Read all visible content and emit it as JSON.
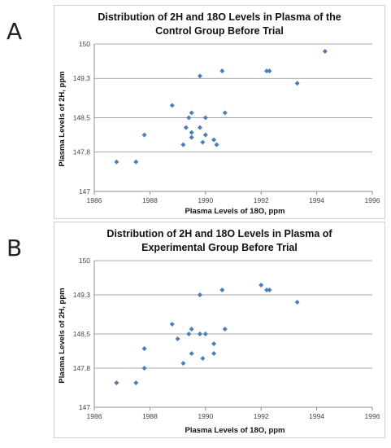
{
  "panels": [
    {
      "letter": "A"
    },
    {
      "letter": "B"
    }
  ],
  "chart_data": [
    {
      "type": "scatter",
      "title_lines": [
        "Distribution of 2H and 18O Levels in Plasma of the",
        "Control Group Before Trial"
      ],
      "xlabel": "Plasma Levels of 18O, ppm",
      "ylabel": "Plasma Levels of 2H, ppm",
      "xlim": [
        1986,
        1996
      ],
      "ylim": [
        147,
        150
      ],
      "x_ticks": [
        1986,
        1988,
        1990,
        1992,
        1994,
        1996
      ],
      "y_ticks": [
        147,
        147.8,
        148.5,
        149.3,
        150
      ],
      "y_tick_labels": [
        "147",
        "147,8",
        "148,5",
        "149,3",
        "150"
      ],
      "grid": "horizontal",
      "color": "#4a7ebb",
      "points": [
        {
          "x": 1986.8,
          "y": 147.6
        },
        {
          "x": 1987.5,
          "y": 147.6
        },
        {
          "x": 1987.8,
          "y": 148.15
        },
        {
          "x": 1988.8,
          "y": 148.75
        },
        {
          "x": 1989.2,
          "y": 147.95
        },
        {
          "x": 1989.3,
          "y": 148.3
        },
        {
          "x": 1989.4,
          "y": 148.5
        },
        {
          "x": 1989.5,
          "y": 148.2
        },
        {
          "x": 1989.5,
          "y": 148.1
        },
        {
          "x": 1989.5,
          "y": 148.6
        },
        {
          "x": 1989.8,
          "y": 148.3
        },
        {
          "x": 1989.8,
          "y": 149.35
        },
        {
          "x": 1989.9,
          "y": 148.0
        },
        {
          "x": 1990.0,
          "y": 148.5
        },
        {
          "x": 1990.0,
          "y": 148.15
        },
        {
          "x": 1990.3,
          "y": 148.05
        },
        {
          "x": 1990.4,
          "y": 147.95
        },
        {
          "x": 1990.6,
          "y": 149.45
        },
        {
          "x": 1990.7,
          "y": 148.6
        },
        {
          "x": 1992.2,
          "y": 149.45
        },
        {
          "x": 1992.3,
          "y": 149.45
        },
        {
          "x": 1993.3,
          "y": 149.2
        },
        {
          "x": 1994.3,
          "y": 149.85
        }
      ]
    },
    {
      "type": "scatter",
      "title_lines": [
        "Distribution of 2H and 18O Levels in Plasma of",
        "Experimental Group Before Trial"
      ],
      "xlabel": "Plasma Levels of 18O, ppm",
      "ylabel": "Plasma Levels of 2H, ppm",
      "xlim": [
        1986,
        1996
      ],
      "ylim": [
        147,
        150
      ],
      "x_ticks": [
        1986,
        1988,
        1990,
        1992,
        1994,
        1996
      ],
      "y_ticks": [
        147,
        147.8,
        148.5,
        149.3,
        150
      ],
      "y_tick_labels": [
        "147",
        "147,8",
        "148,5",
        "149,3",
        "150"
      ],
      "grid": "horizontal",
      "color": "#4a7ebb",
      "points": [
        {
          "x": 1986.8,
          "y": 147.5
        },
        {
          "x": 1987.5,
          "y": 147.5
        },
        {
          "x": 1987.8,
          "y": 147.8
        },
        {
          "x": 1987.8,
          "y": 148.2
        },
        {
          "x": 1988.8,
          "y": 148.7
        },
        {
          "x": 1989.0,
          "y": 148.4
        },
        {
          "x": 1989.2,
          "y": 147.9
        },
        {
          "x": 1989.4,
          "y": 148.5
        },
        {
          "x": 1989.5,
          "y": 148.6
        },
        {
          "x": 1989.5,
          "y": 148.1
        },
        {
          "x": 1989.8,
          "y": 148.5
        },
        {
          "x": 1989.8,
          "y": 149.3
        },
        {
          "x": 1989.9,
          "y": 148.0
        },
        {
          "x": 1990.0,
          "y": 148.5
        },
        {
          "x": 1990.3,
          "y": 148.3
        },
        {
          "x": 1990.3,
          "y": 148.1
        },
        {
          "x": 1990.6,
          "y": 149.4
        },
        {
          "x": 1990.7,
          "y": 148.6
        },
        {
          "x": 1992.0,
          "y": 149.5
        },
        {
          "x": 1992.2,
          "y": 149.4
        },
        {
          "x": 1992.3,
          "y": 149.4
        },
        {
          "x": 1993.3,
          "y": 149.15
        }
      ]
    }
  ]
}
